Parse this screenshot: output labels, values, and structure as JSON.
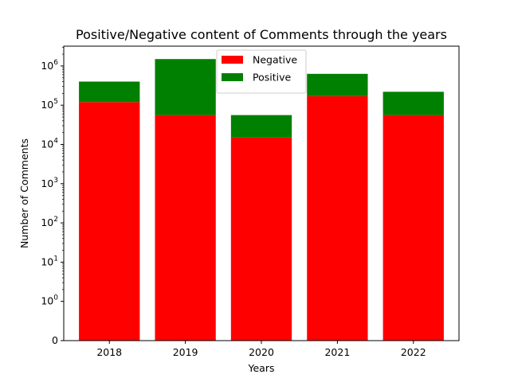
{
  "chart_data": {
    "type": "bar",
    "stacked": true,
    "title": "Positive/Negative content of Comments through the years",
    "xlabel": "Years",
    "ylabel": "Number of Comments",
    "categories": [
      "2018",
      "2019",
      "2020",
      "2021",
      "2022"
    ],
    "series": [
      {
        "name": "Negative",
        "color": "#ff0000",
        "values": [
          120000,
          56000,
          15000,
          170000,
          56000
        ]
      },
      {
        "name": "Positive",
        "color": "#008000",
        "values": [
          280000,
          1444000,
          41000,
          460000,
          164000
        ]
      }
    ],
    "yscale": "symlog",
    "ylim": [
      0,
      3200000
    ],
    "yticks": [
      {
        "value": 0,
        "label": "0"
      },
      {
        "value": 1,
        "label": "10^0"
      },
      {
        "value": 10,
        "label": "10^1"
      },
      {
        "value": 100,
        "label": "10^2"
      },
      {
        "value": 1000,
        "label": "10^3"
      },
      {
        "value": 10000,
        "label": "10^4"
      },
      {
        "value": 100000,
        "label": "10^5"
      },
      {
        "value": 1000000,
        "label": "10^6"
      }
    ],
    "grid": false,
    "legend": "top-center"
  }
}
